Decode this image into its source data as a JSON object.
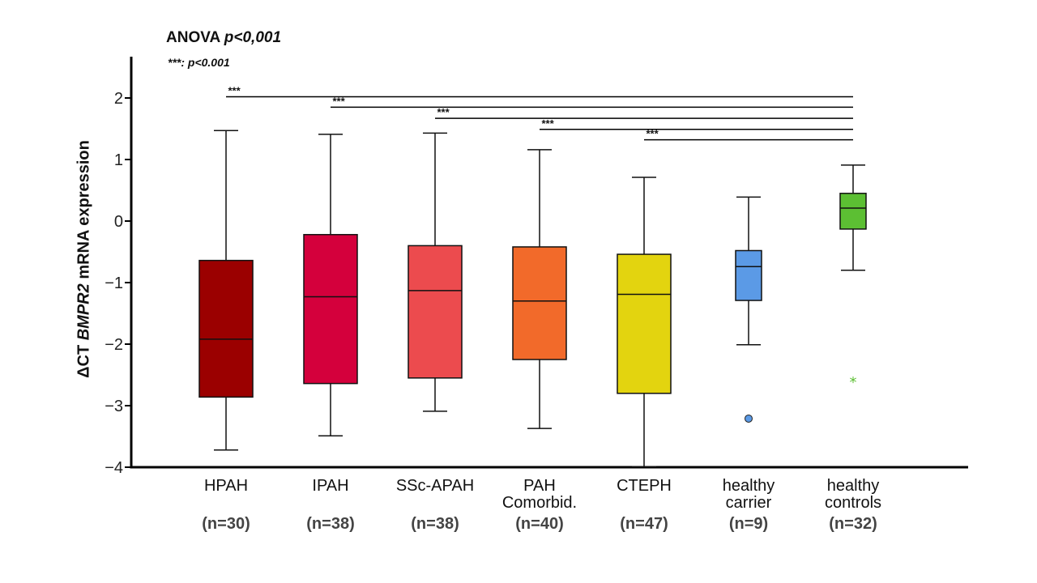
{
  "chart_data": {
    "type": "box",
    "title": "ANOVA",
    "title_p": "p<0,001",
    "note_stars": "***:",
    "note_p": "p<0.001",
    "ylabel_prefix": "ΔCT",
    "ylabel_gene": "BMPR2",
    "ylabel_suffix": "mRNA expression",
    "ylim": [
      -4,
      2.5
    ],
    "yticks": [
      2,
      1,
      0,
      -1,
      -2,
      -3,
      -4
    ],
    "ytick_labels": [
      "2",
      "1",
      "0",
      "−1",
      "−2",
      "−3",
      "−4"
    ],
    "grid": false,
    "categories": [
      {
        "label": [
          "HPAH"
        ],
        "n": "(n=30)",
        "color": "#9b0000",
        "whisker_low": -3.72,
        "q1": -2.86,
        "median": -1.92,
        "q3": -0.64,
        "whisker_high": 1.47,
        "outliers": []
      },
      {
        "label": [
          "IPAH"
        ],
        "n": "(n=38)",
        "color": "#d4003c",
        "whisker_low": -3.49,
        "q1": -2.64,
        "median": -1.23,
        "q3": -0.22,
        "whisker_high": 1.41,
        "outliers": []
      },
      {
        "label": [
          "SSc-APAH"
        ],
        "n": "(n=38)",
        "color": "#ec4b4e",
        "whisker_low": -3.09,
        "q1": -2.55,
        "median": -1.13,
        "q3": -0.4,
        "whisker_high": 1.43,
        "outliers": []
      },
      {
        "label": [
          "PAH",
          "Comorbid."
        ],
        "n": "(n=40)",
        "color": "#f26a2a",
        "whisker_low": -3.37,
        "q1": -2.25,
        "median": -1.3,
        "q3": -0.42,
        "whisker_high": 1.16,
        "outliers": []
      },
      {
        "label": [
          "CTEPH"
        ],
        "n": "(n=47)",
        "color": "#e3d40f",
        "whisker_low": -3.99,
        "q1": -2.8,
        "median": -1.19,
        "q3": -0.54,
        "whisker_high": 0.71,
        "outliers": []
      },
      {
        "label": [
          "healthy",
          "carrier"
        ],
        "n": "(n=9)",
        "color": "#5b9ae6",
        "whisker_low": -2.01,
        "q1": -1.29,
        "median": -0.74,
        "q3": -0.48,
        "whisker_high": 0.39,
        "outliers": [
          -3.21
        ],
        "outlier_marker": "circle"
      },
      {
        "label": [
          "healthy",
          "controls"
        ],
        "n": "(n=32)",
        "color": "#5cbf33",
        "whisker_low": -0.8,
        "q1": -0.13,
        "median": 0.21,
        "q3": 0.45,
        "whisker_high": 0.91,
        "outliers": [
          -2.58
        ],
        "outlier_marker": "star"
      }
    ],
    "significance": [
      {
        "from": 0,
        "to": 6,
        "label": "***",
        "level": 2.02
      },
      {
        "from": 1,
        "to": 6,
        "label": "***",
        "level": 1.85
      },
      {
        "from": 2,
        "to": 6,
        "label": "***",
        "level": 1.67
      },
      {
        "from": 3,
        "to": 6,
        "label": "***",
        "level": 1.49
      },
      {
        "from": 4,
        "to": 6,
        "label": "***",
        "level": 1.32
      }
    ]
  }
}
